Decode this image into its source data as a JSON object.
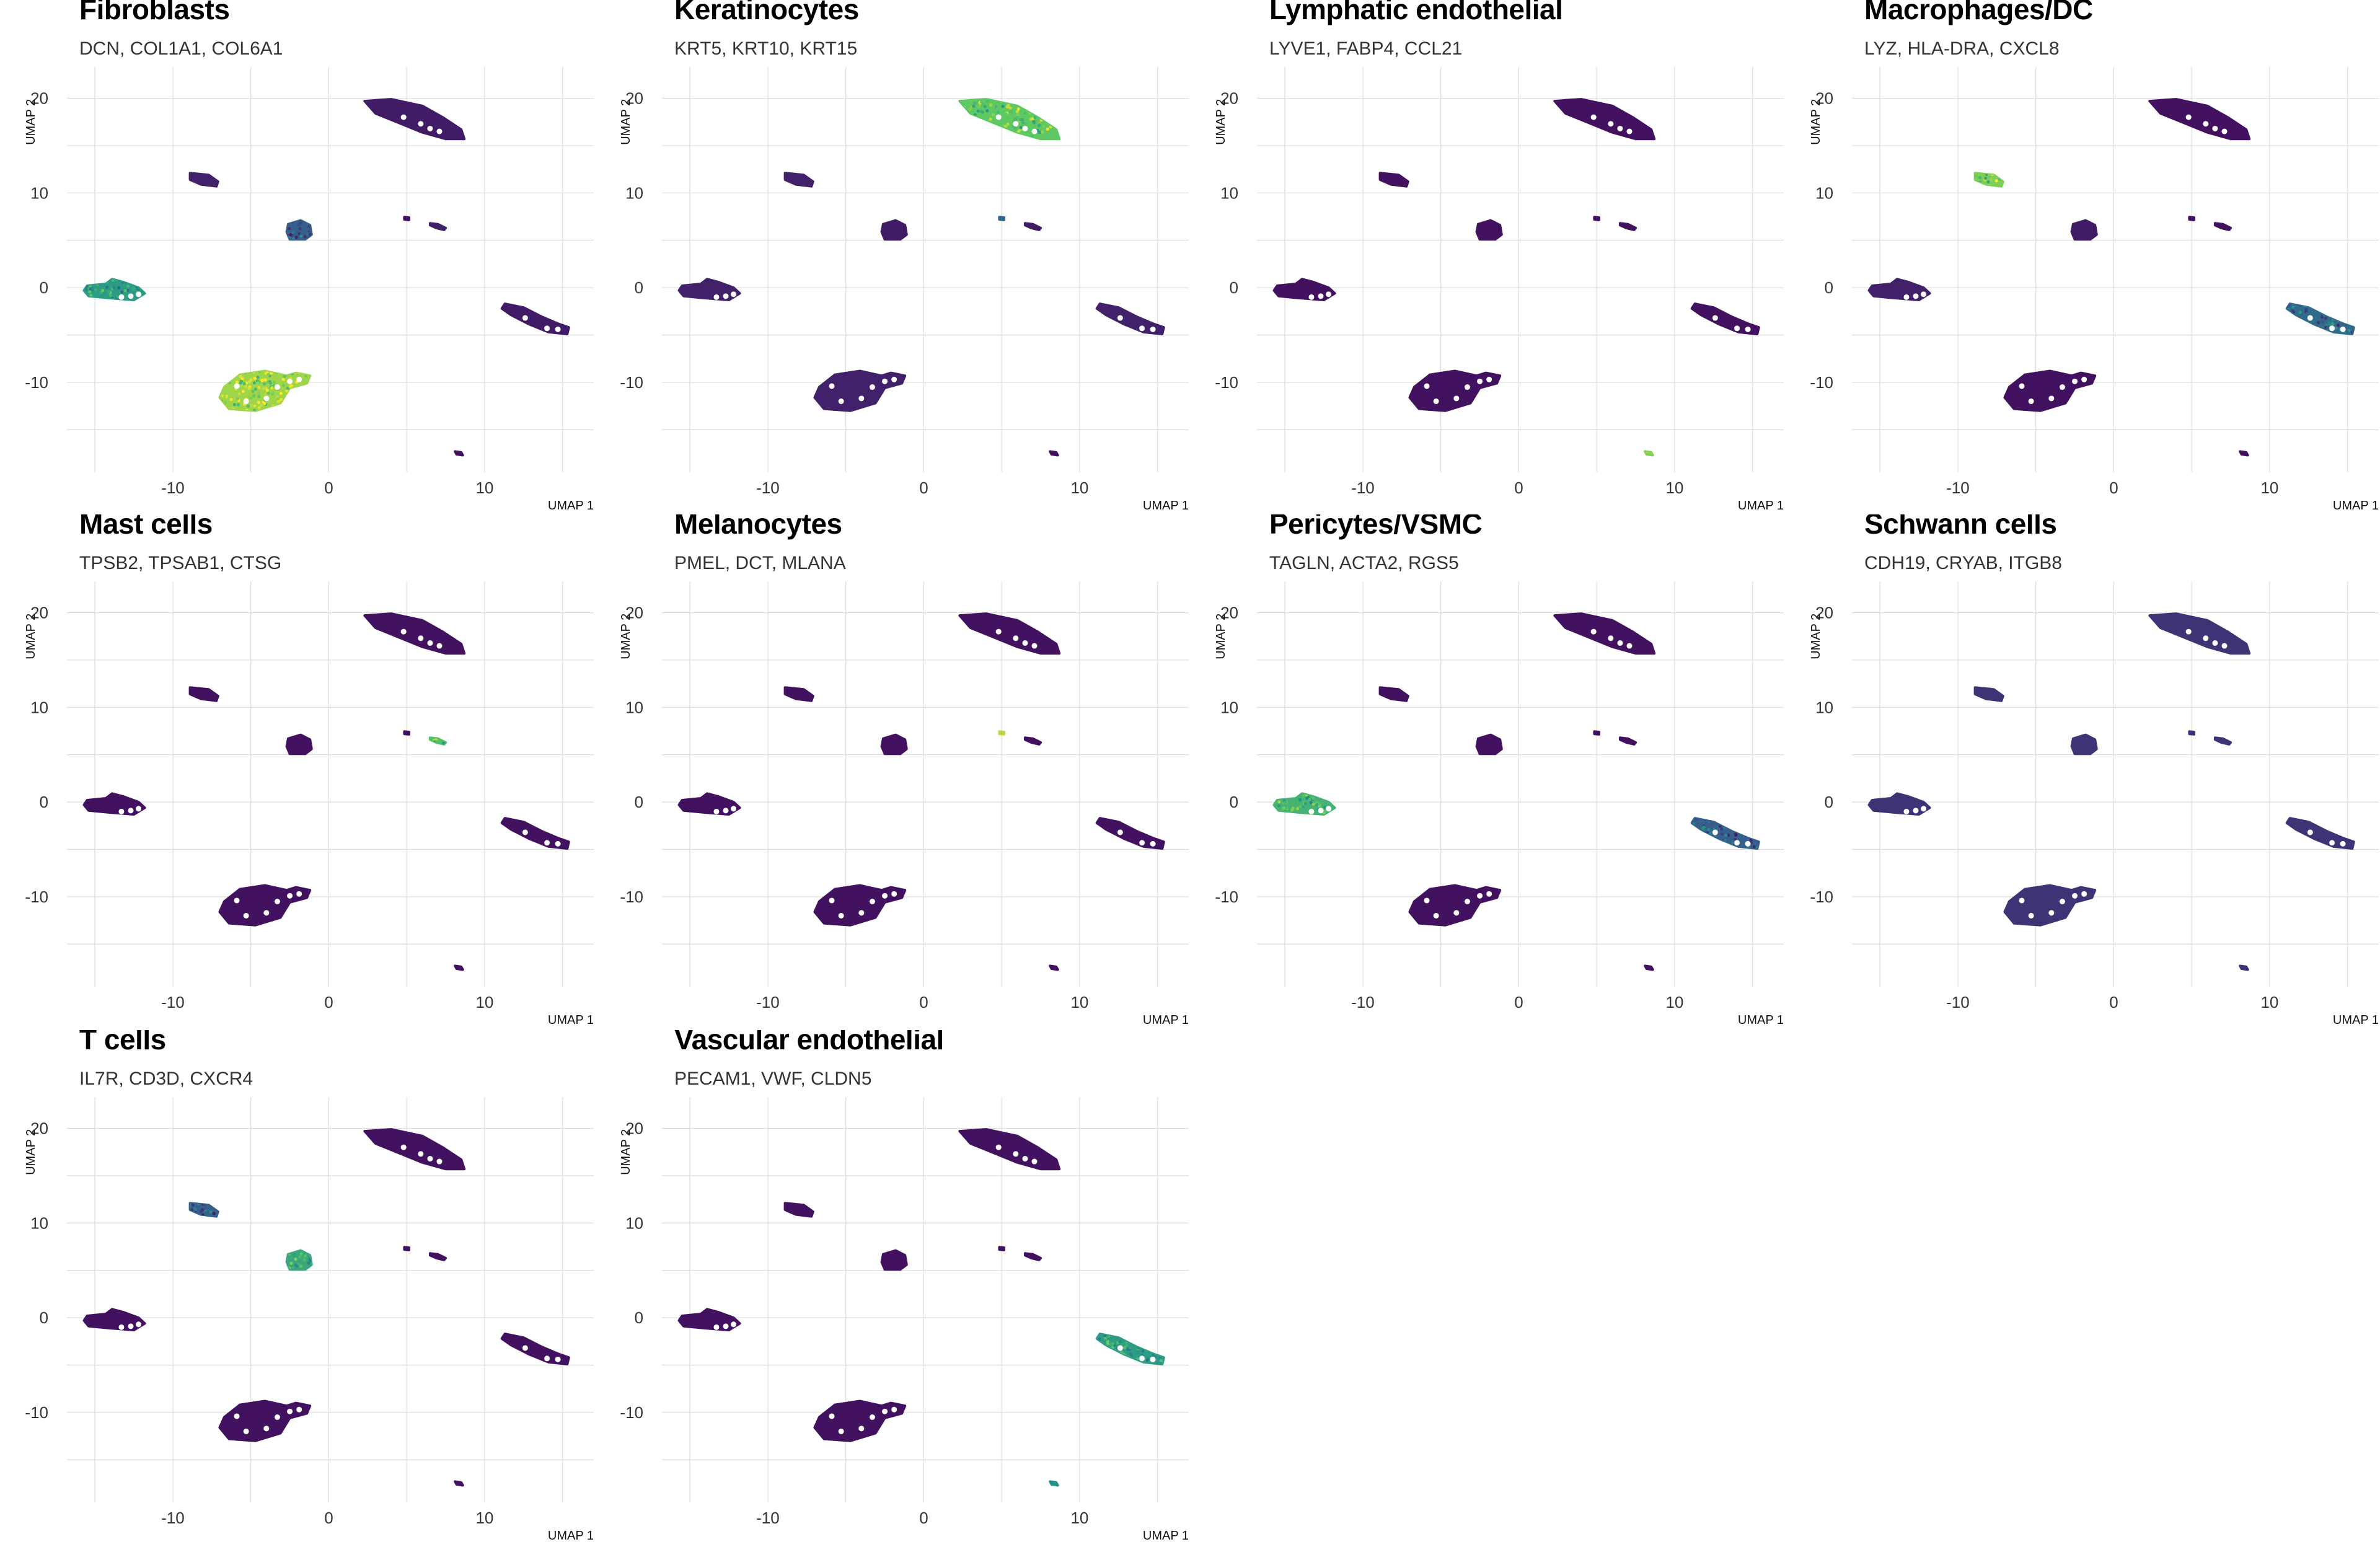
{
  "figure": {
    "x_axis_label": "UMAP 1",
    "y_axis_label": "UMAP 2"
  },
  "colors": {
    "low": "#440154",
    "mid_low": "#3b528b",
    "mid": "#21918c",
    "mid_high": "#5ec962",
    "high": "#b5de2b",
    "gridline": "#dcdcdc"
  },
  "chart_data": [
    {
      "type": "scatter",
      "title": "Fibroblasts",
      "subtitle": "DCN, COL1A1, COL6A1",
      "xlabel": "UMAP 1",
      "ylabel": "UMAP 2",
      "xlim": [
        -16,
        17
      ],
      "ylim": [
        -19.5,
        22
      ],
      "xticks": [
        -10,
        0,
        10
      ],
      "yticks": [
        -10,
        0,
        10,
        20
      ],
      "clusters": [
        {
          "x": 5.5,
          "y": 18.2,
          "expression": 0.08
        },
        {
          "x": -8.0,
          "y": 11.4,
          "expression": 0.1
        },
        {
          "x": -1.8,
          "y": 6.0,
          "expression": 0.3
        },
        {
          "x": 5.0,
          "y": 7.3,
          "expression": 0.05
        },
        {
          "x": 7.0,
          "y": 6.5,
          "expression": 0.1
        },
        {
          "x": -13.5,
          "y": -0.3,
          "expression": 0.55
        },
        {
          "x": 13.5,
          "y": -3.5,
          "expression": 0.08
        },
        {
          "x": -3.5,
          "y": -10.8,
          "expression": 0.85
        },
        {
          "x": 8.3,
          "y": -17.5,
          "expression": 0.05
        }
      ]
    },
    {
      "type": "scatter",
      "title": "Keratinocytes",
      "subtitle": "KRT5, KRT10, KRT15",
      "xlabel": "UMAP 1",
      "ylabel": "UMAP 2",
      "xlim": [
        -16,
        17
      ],
      "ylim": [
        -19.5,
        22
      ],
      "xticks": [
        -10,
        0,
        10
      ],
      "yticks": [
        -10,
        0,
        10,
        20
      ],
      "clusters": [
        {
          "x": 5.5,
          "y": 18.2,
          "expression": 0.75
        },
        {
          "x": -8.0,
          "y": 11.4,
          "expression": 0.1
        },
        {
          "x": -1.8,
          "y": 6.0,
          "expression": 0.08
        },
        {
          "x": 5.0,
          "y": 7.3,
          "expression": 0.3
        },
        {
          "x": 7.0,
          "y": 6.5,
          "expression": 0.08
        },
        {
          "x": -13.5,
          "y": -0.3,
          "expression": 0.1
        },
        {
          "x": 13.5,
          "y": -3.5,
          "expression": 0.1
        },
        {
          "x": -3.5,
          "y": -10.8,
          "expression": 0.1
        },
        {
          "x": 8.3,
          "y": -17.5,
          "expression": 0.05
        }
      ]
    },
    {
      "type": "scatter",
      "title": "Lymphatic endothelial",
      "subtitle": "LYVE1, FABP4, CCL21",
      "xlabel": "UMAP 1",
      "ylabel": "UMAP 2",
      "xlim": [
        -16,
        17
      ],
      "ylim": [
        -19.5,
        22
      ],
      "xticks": [
        -10,
        0,
        10
      ],
      "yticks": [
        -10,
        0,
        10,
        20
      ],
      "clusters": [
        {
          "x": 5.5,
          "y": 18.2,
          "expression": 0.05
        },
        {
          "x": -8.0,
          "y": 11.4,
          "expression": 0.05
        },
        {
          "x": -1.8,
          "y": 6.0,
          "expression": 0.05
        },
        {
          "x": 5.0,
          "y": 7.3,
          "expression": 0.05
        },
        {
          "x": 7.0,
          "y": 6.5,
          "expression": 0.05
        },
        {
          "x": -13.5,
          "y": -0.3,
          "expression": 0.05
        },
        {
          "x": 13.5,
          "y": -3.5,
          "expression": 0.05
        },
        {
          "x": -3.5,
          "y": -10.8,
          "expression": 0.05
        },
        {
          "x": 8.3,
          "y": -17.5,
          "expression": 0.8
        }
      ]
    },
    {
      "type": "scatter",
      "title": "Macrophages/DC",
      "subtitle": "LYZ, HLA-DRA, CXCL8",
      "xlabel": "UMAP 1",
      "ylabel": "UMAP 2",
      "xlim": [
        -16,
        17
      ],
      "ylim": [
        -19.5,
        22
      ],
      "xticks": [
        -10,
        0,
        10
      ],
      "yticks": [
        -10,
        0,
        10,
        20
      ],
      "clusters": [
        {
          "x": 5.5,
          "y": 18.2,
          "expression": 0.05
        },
        {
          "x": -8.0,
          "y": 11.4,
          "expression": 0.8
        },
        {
          "x": -1.8,
          "y": 6.0,
          "expression": 0.08
        },
        {
          "x": 5.0,
          "y": 7.3,
          "expression": 0.05
        },
        {
          "x": 7.0,
          "y": 6.5,
          "expression": 0.05
        },
        {
          "x": -13.5,
          "y": -0.3,
          "expression": 0.1
        },
        {
          "x": 13.5,
          "y": -3.5,
          "expression": 0.35
        },
        {
          "x": -3.5,
          "y": -10.8,
          "expression": 0.05
        },
        {
          "x": 8.3,
          "y": -17.5,
          "expression": 0.05
        }
      ]
    },
    {
      "type": "scatter",
      "title": "Mast cells",
      "subtitle": "TPSB2, TPSAB1, CTSG",
      "xlabel": "UMAP 1",
      "ylabel": "UMAP 2",
      "xlim": [
        -16,
        17
      ],
      "ylim": [
        -19.5,
        22
      ],
      "xticks": [
        -10,
        0,
        10
      ],
      "yticks": [
        -10,
        0,
        10,
        20
      ],
      "clusters": [
        {
          "x": 5.5,
          "y": 18.2,
          "expression": 0.05
        },
        {
          "x": -8.0,
          "y": 11.4,
          "expression": 0.05
        },
        {
          "x": -1.8,
          "y": 6.0,
          "expression": 0.05
        },
        {
          "x": 5.0,
          "y": 7.3,
          "expression": 0.05
        },
        {
          "x": 7.0,
          "y": 6.5,
          "expression": 0.7
        },
        {
          "x": -13.5,
          "y": -0.3,
          "expression": 0.05
        },
        {
          "x": 13.5,
          "y": -3.5,
          "expression": 0.05
        },
        {
          "x": -3.5,
          "y": -10.8,
          "expression": 0.05
        },
        {
          "x": 8.3,
          "y": -17.5,
          "expression": 0.05
        }
      ]
    },
    {
      "type": "scatter",
      "title": "Melanocytes",
      "subtitle": "PMEL, DCT, MLANA",
      "xlabel": "UMAP 1",
      "ylabel": "UMAP 2",
      "xlim": [
        -16,
        17
      ],
      "ylim": [
        -19.5,
        22
      ],
      "xticks": [
        -10,
        0,
        10
      ],
      "yticks": [
        -10,
        0,
        10,
        20
      ],
      "clusters": [
        {
          "x": 5.5,
          "y": 18.2,
          "expression": 0.05
        },
        {
          "x": -8.0,
          "y": 11.4,
          "expression": 0.05
        },
        {
          "x": -1.8,
          "y": 6.0,
          "expression": 0.05
        },
        {
          "x": 5.0,
          "y": 7.3,
          "expression": 0.9
        },
        {
          "x": 7.0,
          "y": 6.5,
          "expression": 0.05
        },
        {
          "x": -13.5,
          "y": -0.3,
          "expression": 0.05
        },
        {
          "x": 13.5,
          "y": -3.5,
          "expression": 0.05
        },
        {
          "x": -3.5,
          "y": -10.8,
          "expression": 0.05
        },
        {
          "x": 8.3,
          "y": -17.5,
          "expression": 0.05
        }
      ]
    },
    {
      "type": "scatter",
      "title": "Pericytes/VSMC",
      "subtitle": "TAGLN, ACTA2, RGS5",
      "xlabel": "UMAP 1",
      "ylabel": "UMAP 2",
      "xlim": [
        -16,
        17
      ],
      "ylim": [
        -19.5,
        22
      ],
      "xticks": [
        -10,
        0,
        10
      ],
      "yticks": [
        -10,
        0,
        10,
        20
      ],
      "clusters": [
        {
          "x": 5.5,
          "y": 18.2,
          "expression": 0.05
        },
        {
          "x": -8.0,
          "y": 11.4,
          "expression": 0.05
        },
        {
          "x": -1.8,
          "y": 6.0,
          "expression": 0.05
        },
        {
          "x": 5.0,
          "y": 7.3,
          "expression": 0.05
        },
        {
          "x": 7.0,
          "y": 6.5,
          "expression": 0.05
        },
        {
          "x": -13.5,
          "y": -0.3,
          "expression": 0.65
        },
        {
          "x": 13.5,
          "y": -3.5,
          "expression": 0.3
        },
        {
          "x": -3.5,
          "y": -10.8,
          "expression": 0.05
        },
        {
          "x": 8.3,
          "y": -17.5,
          "expression": 0.05
        }
      ]
    },
    {
      "type": "scatter",
      "title": "Schwann cells",
      "subtitle": "CDH19, CRYAB, ITGB8",
      "xlabel": "UMAP 1",
      "ylabel": "UMAP 2",
      "xlim": [
        -16,
        17
      ],
      "ylim": [
        -19.5,
        22
      ],
      "xticks": [
        -10,
        0,
        10
      ],
      "yticks": [
        -10,
        0,
        10,
        20
      ],
      "clusters": [
        {
          "x": 5.5,
          "y": 18.2,
          "expression": 0.15
        },
        {
          "x": -8.0,
          "y": 11.4,
          "expression": 0.15
        },
        {
          "x": -1.8,
          "y": 6.0,
          "expression": 0.15
        },
        {
          "x": 5.0,
          "y": 7.3,
          "expression": 0.15
        },
        {
          "x": 7.0,
          "y": 6.5,
          "expression": 0.15
        },
        {
          "x": -13.5,
          "y": -0.3,
          "expression": 0.15
        },
        {
          "x": 13.5,
          "y": -3.5,
          "expression": 0.15
        },
        {
          "x": -3.5,
          "y": -10.8,
          "expression": 0.15
        },
        {
          "x": 8.3,
          "y": -17.5,
          "expression": 0.15
        }
      ]
    },
    {
      "type": "scatter",
      "title": "T cells",
      "subtitle": "IL7R, CD3D, CXCR4",
      "xlabel": "UMAP 1",
      "ylabel": "UMAP 2",
      "xlim": [
        -16,
        17
      ],
      "ylim": [
        -19.5,
        22
      ],
      "xticks": [
        -10,
        0,
        10
      ],
      "yticks": [
        -10,
        0,
        10,
        20
      ],
      "clusters": [
        {
          "x": 5.5,
          "y": 18.2,
          "expression": 0.05
        },
        {
          "x": -8.0,
          "y": 11.4,
          "expression": 0.3
        },
        {
          "x": -1.8,
          "y": 6.0,
          "expression": 0.6
        },
        {
          "x": 5.0,
          "y": 7.3,
          "expression": 0.05
        },
        {
          "x": 7.0,
          "y": 6.5,
          "expression": 0.05
        },
        {
          "x": -13.5,
          "y": -0.3,
          "expression": 0.05
        },
        {
          "x": 13.5,
          "y": -3.5,
          "expression": 0.05
        },
        {
          "x": -3.5,
          "y": -10.8,
          "expression": 0.05
        },
        {
          "x": 8.3,
          "y": -17.5,
          "expression": 0.05
        }
      ]
    },
    {
      "type": "scatter",
      "title": "Vascular endothelial",
      "subtitle": "PECAM1, VWF, CLDN5",
      "xlabel": "UMAP 1",
      "ylabel": "UMAP 2",
      "xlim": [
        -16,
        17
      ],
      "ylim": [
        -19.5,
        22
      ],
      "xticks": [
        -10,
        0,
        10
      ],
      "yticks": [
        -10,
        0,
        10,
        20
      ],
      "clusters": [
        {
          "x": 5.5,
          "y": 18.2,
          "expression": 0.05
        },
        {
          "x": -8.0,
          "y": 11.4,
          "expression": 0.05
        },
        {
          "x": -1.8,
          "y": 6.0,
          "expression": 0.05
        },
        {
          "x": 5.0,
          "y": 7.3,
          "expression": 0.05
        },
        {
          "x": 7.0,
          "y": 6.5,
          "expression": 0.05
        },
        {
          "x": -13.5,
          "y": -0.3,
          "expression": 0.05
        },
        {
          "x": 13.5,
          "y": -3.5,
          "expression": 0.55
        },
        {
          "x": -3.5,
          "y": -10.8,
          "expression": 0.05
        },
        {
          "x": 8.3,
          "y": -17.5,
          "expression": 0.5
        }
      ]
    }
  ]
}
